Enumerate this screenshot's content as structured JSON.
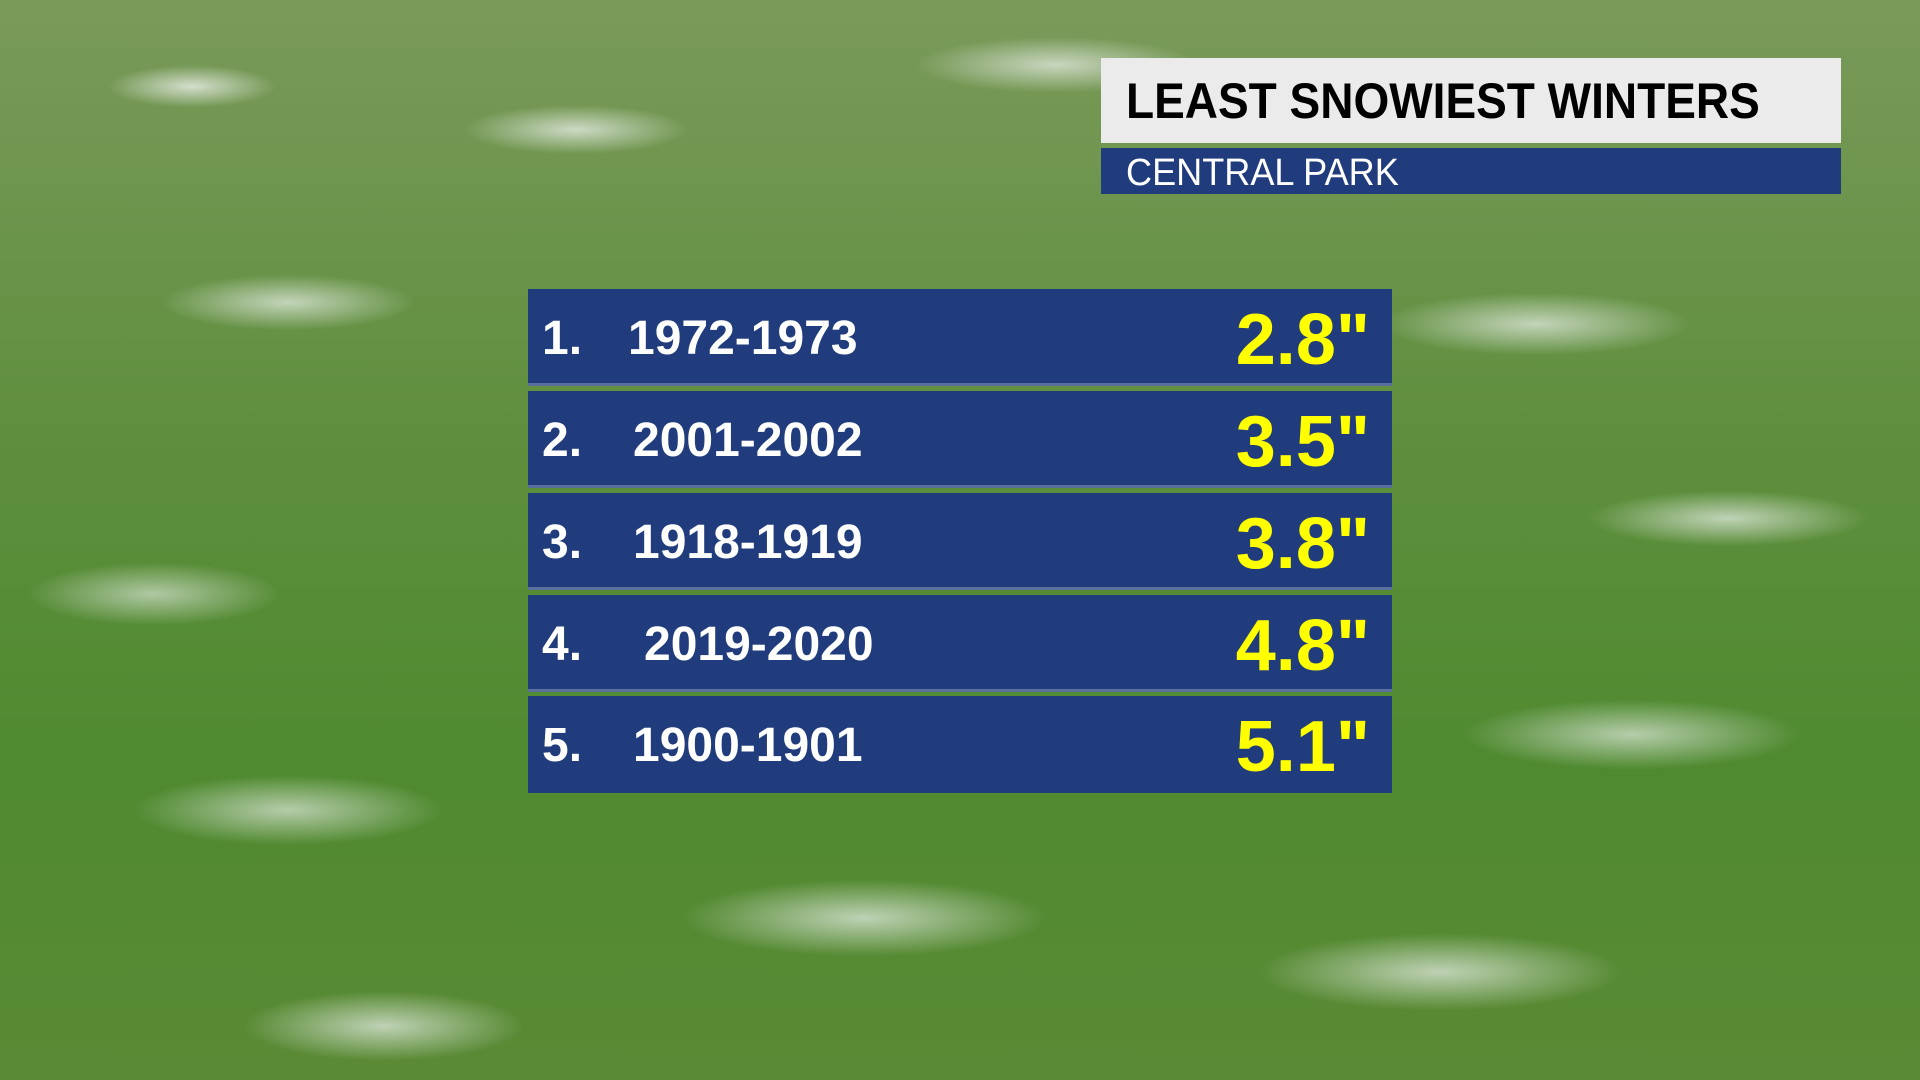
{
  "header": {
    "title": "LEAST SNOWIEST WINTERS",
    "subtitle": "CENTRAL PARK"
  },
  "colors": {
    "panel_blue": "#213c7c",
    "value_yellow": "#ffff00",
    "title_bg": "#ebebeb"
  },
  "rows": [
    {
      "rank": "1.",
      "season": "1972-1973",
      "value": "2.8\""
    },
    {
      "rank": "2.",
      "season": "2001-2002",
      "value": "3.5\""
    },
    {
      "rank": "3.",
      "season": "1918-1919",
      "value": "3.8\""
    },
    {
      "rank": "4.",
      "season": "2019-2020",
      "value": "4.8\""
    },
    {
      "rank": "5.",
      "season": "1900-1901",
      "value": "5.1\""
    }
  ]
}
